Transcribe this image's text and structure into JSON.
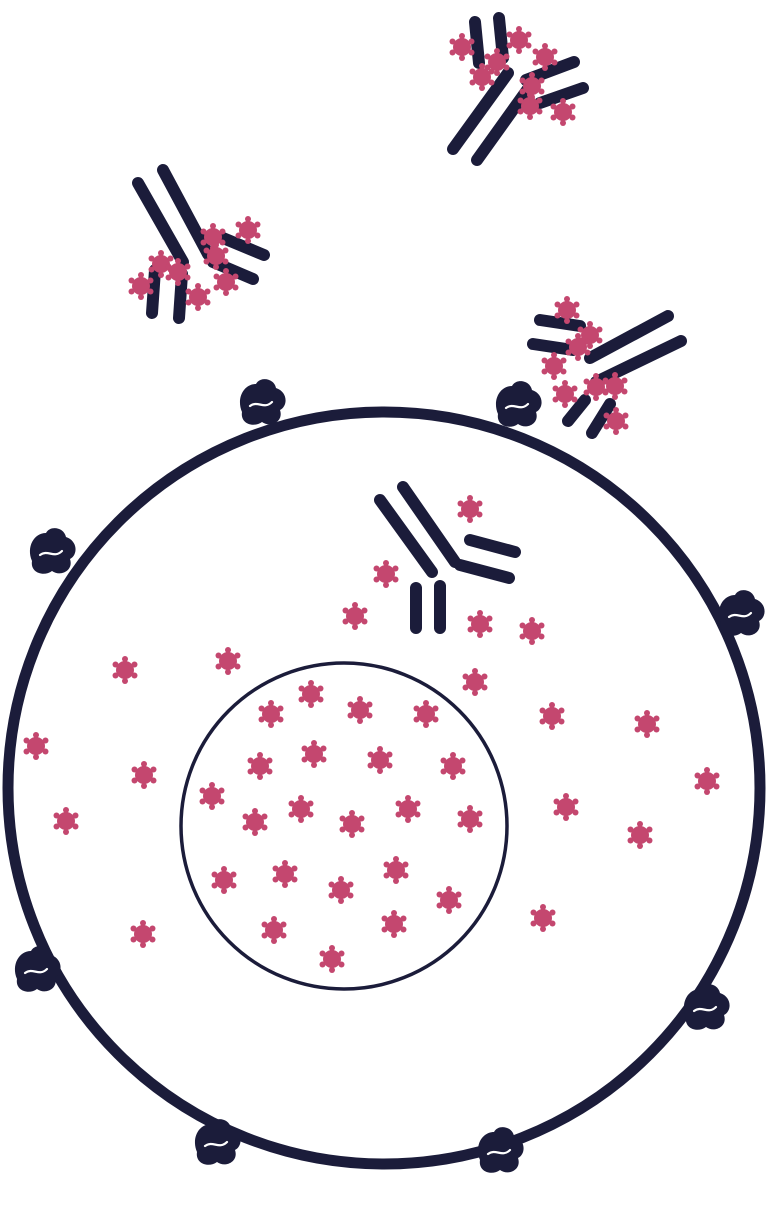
{
  "diagram": {
    "subject": "cell-with-antibodies-and-particles",
    "colors": {
      "outline": "#1b1c3a",
      "particle": "#c4476f",
      "background": "#ffffff"
    },
    "icons": [
      "antibody-icon",
      "membrane-receptor-icon",
      "particle-icon"
    ]
  }
}
